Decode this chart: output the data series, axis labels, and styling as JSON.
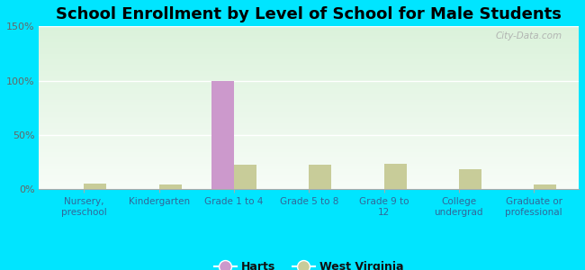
{
  "title": "School Enrollment by Level of School for Male Students",
  "categories": [
    "Nursery,\npreschool",
    "Kindergarten",
    "Grade 1 to 4",
    "Grade 5 to 8",
    "Grade 9 to\n12",
    "College\nundergrad",
    "Graduate or\nprofessional"
  ],
  "harts_values": [
    0,
    0,
    100,
    0,
    0,
    0,
    0
  ],
  "wv_values": [
    5,
    4,
    22,
    22,
    23,
    18,
    4
  ],
  "harts_color": "#cc99cc",
  "wv_color": "#c8cc99",
  "background_color": "#00e5ff",
  "ylim": [
    0,
    150
  ],
  "yticks": [
    0,
    50,
    100,
    150
  ],
  "ytick_labels": [
    "0%",
    "50%",
    "100%",
    "150%"
  ],
  "title_fontsize": 13,
  "legend_labels": [
    "Harts",
    "West Virginia"
  ],
  "bar_width": 0.3,
  "watermark": "City-Data.com"
}
